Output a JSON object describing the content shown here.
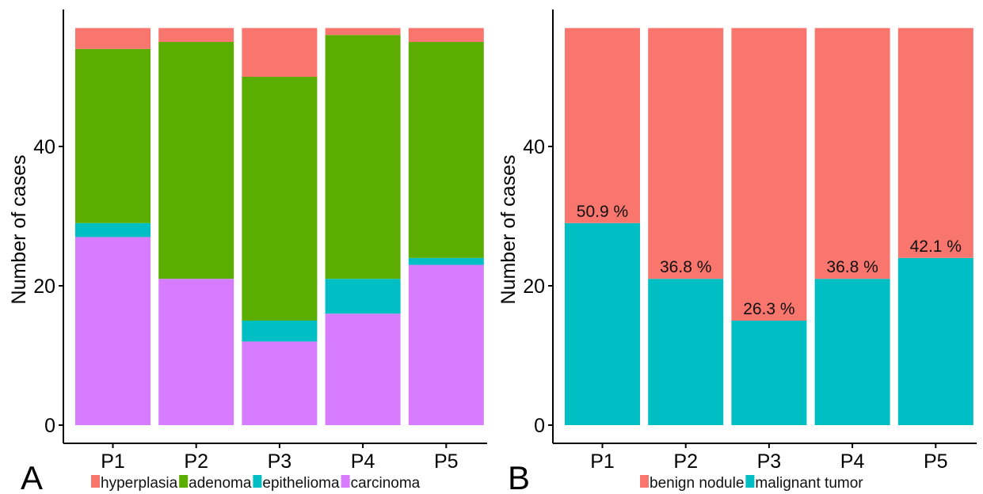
{
  "chart_data": [
    {
      "panel_label": "A",
      "type": "bar",
      "stacked": true,
      "categories": [
        "P1",
        "P2",
        "P3",
        "P4",
        "P5"
      ],
      "ylabel": "Number of cases",
      "ylim": [
        0,
        57
      ],
      "yticks": [
        0,
        20,
        40
      ],
      "grid": false,
      "legend_position": "bottom",
      "series": [
        {
          "name": "carcinoma",
          "color": "#D77BFF",
          "values": [
            27,
            21,
            12,
            16,
            23
          ]
        },
        {
          "name": "epithelioma",
          "color": "#00BFC4",
          "values": [
            2,
            0,
            3,
            5,
            1
          ]
        },
        {
          "name": "adenoma",
          "color": "#5BAE00",
          "values": [
            25,
            34,
            35,
            35,
            31
          ]
        },
        {
          "name": "hyperplasia",
          "color": "#F8766D",
          "values": [
            3,
            2,
            7,
            1,
            2
          ]
        }
      ],
      "legend_order": [
        "hyperplasia",
        "adenoma",
        "epithelioma",
        "carcinoma"
      ]
    },
    {
      "panel_label": "B",
      "type": "bar",
      "stacked": true,
      "categories": [
        "P1",
        "P2",
        "P3",
        "P4",
        "P5"
      ],
      "ylabel": "Number of cases",
      "ylim": [
        0,
        57
      ],
      "yticks": [
        0,
        20,
        40
      ],
      "grid": false,
      "legend_position": "bottom",
      "series": [
        {
          "name": "malignant tumor",
          "color": "#00BFC4",
          "values": [
            29,
            21,
            15,
            21,
            24
          ]
        },
        {
          "name": "benign nodule",
          "color": "#F8766D",
          "values": [
            28,
            36,
            42,
            36,
            33
          ]
        }
      ],
      "bar_labels": [
        "50.9 %",
        "36.8 %",
        "26.3 %",
        "36.8 %",
        "42.1 %"
      ],
      "legend_order": [
        "benign nodule",
        "malignant tumor"
      ]
    }
  ]
}
